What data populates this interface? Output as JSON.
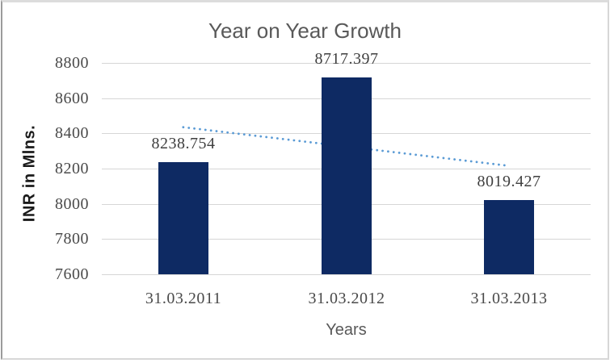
{
  "chart_data": {
    "type": "bar",
    "title": "Year on Year Growth",
    "xlabel": "Years",
    "ylabel": "INR in Mlns.",
    "categories": [
      "31.03.2011",
      "31.03.2012",
      "31.03.2013"
    ],
    "values": [
      8238.754,
      8717.397,
      8019.427
    ],
    "data_labels": [
      "8238.754",
      "8717.397",
      "8019.427"
    ],
    "ylim": [
      7600,
      8800
    ],
    "ytick_step": 200,
    "yticks": [
      7600,
      7800,
      8000,
      8200,
      8400,
      8600,
      8800
    ],
    "grid": true,
    "legend": "none",
    "trendline": {
      "style": "dotted",
      "start_value": 8434.9,
      "end_value": 8215.5
    },
    "colors": {
      "bar": "#0e2a63",
      "trendline": "#5b9bd5",
      "gridline": "#d6d6d6",
      "title": "#595959",
      "axis_title": "#595959",
      "tick_label": "#4a4a4a",
      "data_label": "#3f3f3f",
      "y_axis_title": "#1a1a1a"
    }
  }
}
